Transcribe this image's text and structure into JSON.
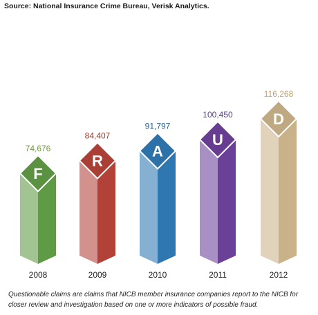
{
  "source": "Source: National Insurance Crime Bureau, Verisk Analytics.",
  "caption": "Questionable claims are claims that NICB member insurance companies report to the NICB for closer review and investigation based on one or more indicators of possible fraud.",
  "chart_data": {
    "type": "bar",
    "categories": [
      "2008",
      "2009",
      "2010",
      "2011",
      "2012"
    ],
    "values": [
      74676,
      84407,
      91797,
      100450,
      116268
    ],
    "value_labels": [
      "74,676",
      "84,407",
      "91,797",
      "100,450",
      "116,268"
    ],
    "letters": [
      "F",
      "R",
      "A",
      "U",
      "D"
    ],
    "colors": [
      "#5f9a45",
      "#b24238",
      "#2e77b0",
      "#6b4099",
      "#c9b289"
    ],
    "label_colors": [
      "#6f9a3f",
      "#9a3a2c",
      "#245f8e",
      "#5a3b8e",
      "#c5a06a"
    ],
    "ylim": [
      0,
      120000
    ]
  }
}
